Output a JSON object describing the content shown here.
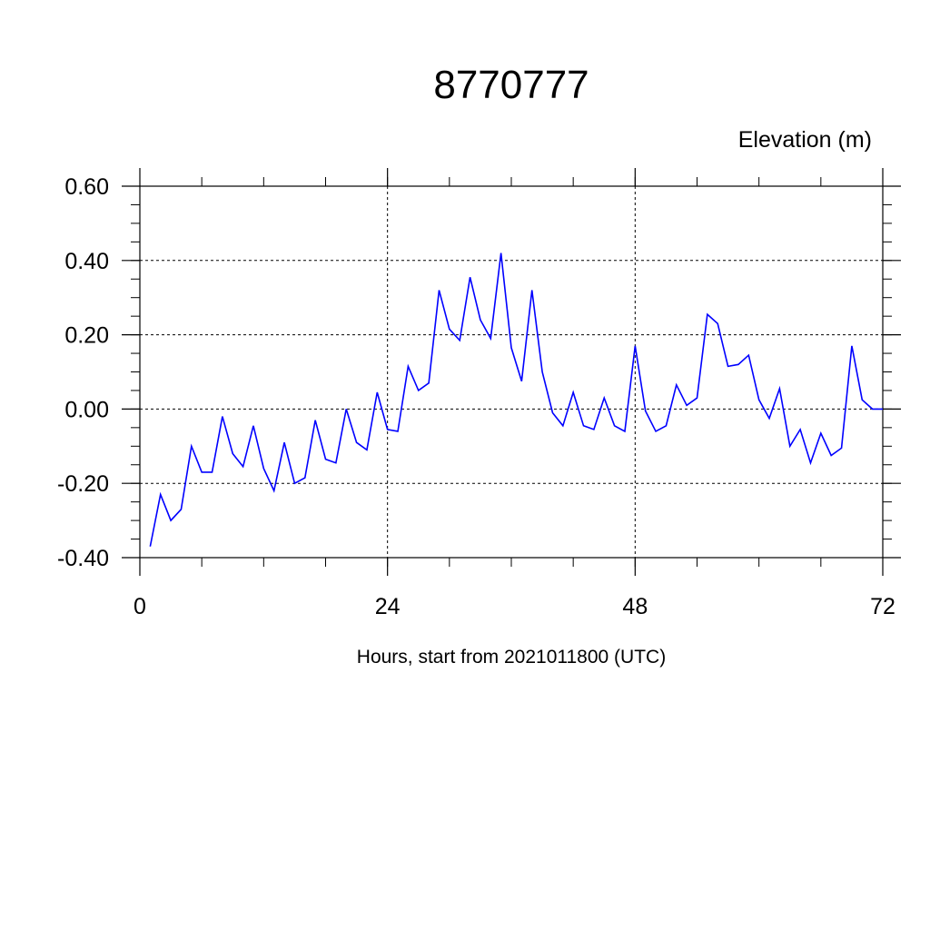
{
  "chart_data": {
    "type": "line",
    "title": "8770777",
    "ylabel": "Elevation (m)",
    "xlabel": "Hours, start from 2021011800 (UTC)",
    "xlim": [
      0,
      72
    ],
    "ylim": [
      -0.4,
      0.6
    ],
    "x_ticks": [
      0,
      24,
      48,
      72
    ],
    "x_tick_labels": [
      "0",
      "24",
      "48",
      "72"
    ],
    "y_ticks": [
      -0.4,
      -0.2,
      0.0,
      0.2,
      0.4,
      0.6
    ],
    "y_tick_labels": [
      "-0.40",
      "-0.20",
      "0.00",
      "0.20",
      "0.40",
      "0.60"
    ],
    "grid": true,
    "line_color": "#0000ff",
    "series": [
      {
        "x": [
          1,
          2,
          3,
          4,
          5,
          6,
          7,
          8,
          9,
          10,
          11,
          12,
          13,
          14,
          15,
          16,
          17,
          18,
          19,
          20,
          21,
          22,
          23,
          24,
          25,
          26,
          27,
          28,
          29,
          30,
          31,
          32,
          33,
          34,
          35,
          36,
          37,
          38,
          39,
          40,
          41,
          42,
          43,
          44,
          45,
          46,
          47,
          48,
          49,
          50,
          51,
          52,
          53,
          54,
          55,
          56,
          57,
          58,
          59,
          60,
          61,
          62,
          63,
          64,
          65,
          66,
          67,
          68,
          69,
          70,
          71,
          72
        ],
        "values": [
          -0.37,
          -0.23,
          -0.3,
          -0.27,
          -0.1,
          -0.17,
          -0.17,
          -0.02,
          -0.12,
          -0.155,
          -0.045,
          -0.16,
          -0.22,
          -0.09,
          -0.2,
          -0.185,
          -0.03,
          -0.135,
          -0.145,
          0.0,
          -0.09,
          -0.11,
          0.045,
          -0.055,
          -0.06,
          0.115,
          0.05,
          0.07,
          0.32,
          0.215,
          0.185,
          0.355,
          0.24,
          0.19,
          0.42,
          0.165,
          0.075,
          0.32,
          0.1,
          -0.01,
          -0.045,
          0.045,
          -0.045,
          -0.055,
          0.03,
          -0.045,
          -0.06,
          0.17,
          -0.005,
          -0.06,
          -0.045,
          0.065,
          0.01,
          0.03,
          0.255,
          0.23,
          0.115,
          0.12,
          0.145,
          0.025,
          -0.025,
          0.055,
          -0.1,
          -0.055,
          -0.145,
          -0.065,
          -0.125,
          -0.105,
          0.17,
          0.025,
          0.0,
          0.0
        ]
      }
    ]
  }
}
